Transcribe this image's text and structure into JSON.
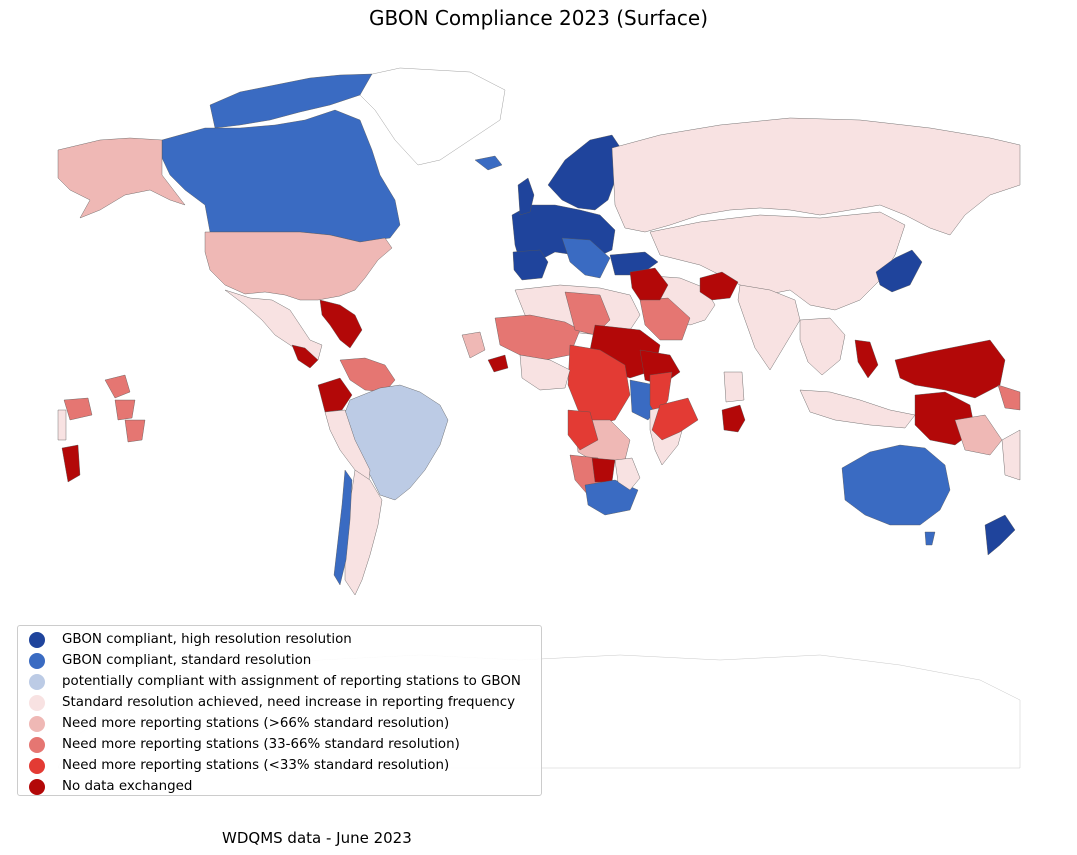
{
  "title": "GBON Compliance 2023 (Surface)",
  "footer": "WDQMS data - June 2023",
  "legend": {
    "items": [
      {
        "label": "GBON compliant, high resolution resolution",
        "color": "#1f449c"
      },
      {
        "label": "GBON compliant, standard resolution",
        "color": "#3a6bc2"
      },
      {
        "label": "potentially compliant with assignment of reporting stations to GBON",
        "color": "#bccbe5"
      },
      {
        "label": "Standard resolution achieved, need increase in reporting frequency",
        "color": "#f8e2e2"
      },
      {
        "label": "Need more reporting stations (>66% standard resolution)",
        "color": "#efb8b5"
      },
      {
        "label": "Need more reporting stations (33-66% standard resolution)",
        "color": "#e57672"
      },
      {
        "label": "Need more reporting stations (<33% standard resolution)",
        "color": "#e33b34"
      },
      {
        "label": "No data exchanged",
        "color": "#b30808"
      }
    ]
  }
}
